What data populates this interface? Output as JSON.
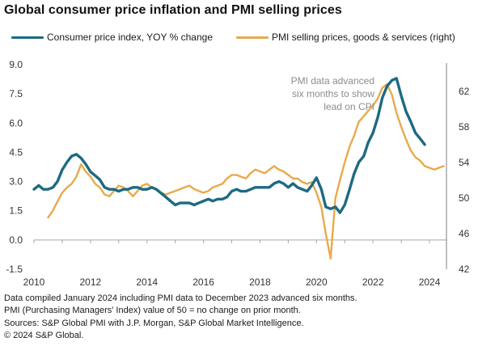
{
  "title": "Global consumer price inflation and PMI selling prices",
  "colors": {
    "cpi": "#1d6a82",
    "pmi": "#e9a94c",
    "zero_line": "#a6a6a6",
    "axis": "#7f7f7f",
    "annotation": "#8c8c8c"
  },
  "chart_data": {
    "type": "line",
    "title": "Global consumer price inflation and PMI selling prices",
    "legend_position": "top",
    "grid": false,
    "x_range": [
      2010.0,
      2024.6
    ],
    "x_ticks": [
      "2010",
      "2012",
      "2014",
      "2016",
      "2018",
      "2020",
      "2022",
      "2024"
    ],
    "left_axis": {
      "ylim": [
        -1.5,
        9.0
      ],
      "ticks": [
        "-1.5",
        "0.0",
        "1.5",
        "3.0",
        "4.5",
        "6.0",
        "7.5",
        "9.0"
      ]
    },
    "right_axis": {
      "ylim": [
        42,
        65
      ],
      "ticks": [
        "42",
        "46",
        "50",
        "54",
        "58",
        "62"
      ]
    },
    "annotation": [
      "PMI data advanced",
      "six months to show",
      "lead on CPI"
    ],
    "series": [
      {
        "name": "Consumer price index, YOY % change",
        "axis": "left",
        "x": [
          2010.0,
          2010.17,
          2010.33,
          2010.5,
          2010.67,
          2010.83,
          2011.0,
          2011.17,
          2011.33,
          2011.5,
          2011.67,
          2011.83,
          2012.0,
          2012.17,
          2012.33,
          2012.5,
          2012.67,
          2012.83,
          2013.0,
          2013.17,
          2013.33,
          2013.5,
          2013.67,
          2013.83,
          2014.0,
          2014.17,
          2014.33,
          2014.5,
          2014.67,
          2014.83,
          2015.0,
          2015.17,
          2015.33,
          2015.5,
          2015.67,
          2015.83,
          2016.0,
          2016.17,
          2016.33,
          2016.5,
          2016.67,
          2016.83,
          2017.0,
          2017.17,
          2017.33,
          2017.5,
          2017.67,
          2017.83,
          2018.0,
          2018.17,
          2018.33,
          2018.5,
          2018.67,
          2018.83,
          2019.0,
          2019.17,
          2019.33,
          2019.5,
          2019.67,
          2019.83,
          2020.0,
          2020.17,
          2020.33,
          2020.5,
          2020.67,
          2020.83,
          2021.0,
          2021.17,
          2021.33,
          2021.5,
          2021.67,
          2021.83,
          2022.0,
          2022.17,
          2022.33,
          2022.5,
          2022.67,
          2022.83,
          2023.0,
          2023.17,
          2023.33,
          2023.5,
          2023.67,
          2023.83
        ],
        "values": [
          2.6,
          2.8,
          2.6,
          2.6,
          2.7,
          3.0,
          3.6,
          4.0,
          4.3,
          4.4,
          4.2,
          3.9,
          3.5,
          3.3,
          3.1,
          2.7,
          2.6,
          2.6,
          2.5,
          2.6,
          2.6,
          2.7,
          2.7,
          2.6,
          2.6,
          2.7,
          2.6,
          2.4,
          2.2,
          2.0,
          1.8,
          1.9,
          1.9,
          1.9,
          1.8,
          1.9,
          2.0,
          2.1,
          2.0,
          2.1,
          2.1,
          2.2,
          2.5,
          2.6,
          2.5,
          2.5,
          2.6,
          2.7,
          2.7,
          2.7,
          2.7,
          2.9,
          3.0,
          2.9,
          2.7,
          2.9,
          2.7,
          2.6,
          2.5,
          2.8,
          3.2,
          2.6,
          1.7,
          1.6,
          1.7,
          1.4,
          1.8,
          2.6,
          3.4,
          4.0,
          4.3,
          5.0,
          5.5,
          6.3,
          7.3,
          7.9,
          8.2,
          8.3,
          7.4,
          6.6,
          6.1,
          5.5,
          5.2,
          4.9
        ]
      },
      {
        "name": "PMI selling prices, goods & services (right)",
        "axis": "right",
        "x": [
          2010.5,
          2010.67,
          2010.83,
          2011.0,
          2011.17,
          2011.33,
          2011.5,
          2011.67,
          2011.83,
          2012.0,
          2012.17,
          2012.33,
          2012.5,
          2012.67,
          2012.83,
          2013.0,
          2013.17,
          2013.33,
          2013.5,
          2013.67,
          2013.83,
          2014.0,
          2014.17,
          2014.33,
          2014.5,
          2014.67,
          2014.83,
          2015.0,
          2015.17,
          2015.33,
          2015.5,
          2015.67,
          2015.83,
          2016.0,
          2016.17,
          2016.33,
          2016.5,
          2016.67,
          2016.83,
          2017.0,
          2017.17,
          2017.33,
          2017.5,
          2017.67,
          2017.83,
          2018.0,
          2018.17,
          2018.33,
          2018.5,
          2018.67,
          2018.83,
          2019.0,
          2019.17,
          2019.33,
          2019.5,
          2019.67,
          2019.83,
          2020.0,
          2020.17,
          2020.33,
          2020.5,
          2020.67,
          2020.83,
          2021.0,
          2021.17,
          2021.33,
          2021.5,
          2021.67,
          2021.83,
          2022.0,
          2022.17,
          2022.33,
          2022.5,
          2022.67,
          2022.83,
          2023.0,
          2023.17,
          2023.33,
          2023.5,
          2023.67,
          2023.83,
          2024.0,
          2024.17,
          2024.33,
          2024.5
        ],
        "values": [
          47.8,
          48.6,
          49.6,
          50.6,
          51.2,
          51.6,
          52.4,
          53.8,
          53.0,
          52.4,
          51.6,
          51.2,
          50.4,
          50.2,
          50.8,
          51.4,
          51.2,
          50.8,
          50.2,
          50.8,
          51.4,
          51.6,
          51.2,
          51.0,
          50.6,
          50.4,
          50.6,
          50.8,
          51.0,
          51.2,
          51.4,
          51.0,
          50.8,
          50.6,
          50.8,
          51.2,
          51.4,
          51.6,
          52.2,
          52.6,
          52.6,
          52.4,
          52.2,
          52.8,
          53.2,
          53.0,
          52.8,
          53.2,
          53.6,
          53.2,
          53.0,
          52.6,
          52.2,
          52.2,
          51.8,
          51.6,
          51.8,
          50.6,
          49.0,
          46.0,
          43.2,
          50.0,
          52.0,
          54.0,
          55.8,
          57.0,
          58.6,
          59.2,
          59.8,
          60.4,
          61.2,
          62.4,
          62.8,
          61.6,
          59.6,
          58.0,
          56.6,
          55.4,
          54.6,
          54.2,
          53.6,
          53.4,
          53.2,
          53.4,
          53.6
        ]
      }
    ]
  },
  "footnotes": [
    "Data compiled January 2024 including PMI data to December 2023 advanced six months.",
    "PMI (Purchasing Managers' Index) value of 50 = no change on prior month.",
    "Sources: S&P Global PMI with J.P. Morgan, S&P Global Market Intelligence.",
    "© 2024 S&P Global."
  ]
}
